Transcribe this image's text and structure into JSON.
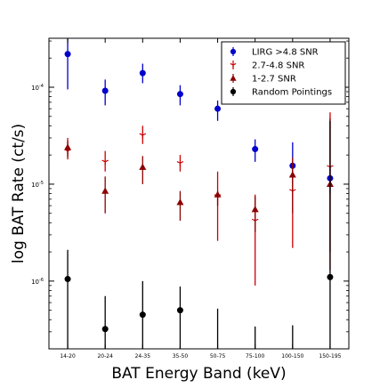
{
  "chart_data": {
    "type": "scatter",
    "subtype": "errorbar",
    "title": "",
    "xlabel": "BAT Energy Band (keV)",
    "ylabel": "log BAT Rate (ct/s)",
    "yscale": "log",
    "ylim": [
      2e-07,
      0.00032
    ],
    "grid": false,
    "legend_position": "top-right",
    "categories": [
      "14-20",
      "20-24",
      "24-35",
      "35-50",
      "50-75",
      "75-100",
      "100-150",
      "150-195"
    ],
    "y_ticks": [
      {
        "value": 1e-06,
        "base": "10",
        "exp": "-6"
      },
      {
        "value": 1e-05,
        "base": "10",
        "exp": "-5"
      },
      {
        "value": 0.0001,
        "base": "10",
        "exp": "-4"
      }
    ],
    "series": [
      {
        "name": "LIRG >4.8 SNR",
        "color": "#0000cc",
        "marker": "circle",
        "x_offset": 0.0,
        "values": [
          0.00022,
          9.2e-05,
          0.00014,
          8.5e-05,
          6e-05,
          2.3e-05,
          1.55e-05,
          1.15e-05
        ],
        "err_low": [
          9.5e-05,
          6.5e-05,
          0.00011,
          6.5e-05,
          4.5e-05,
          1.7e-05,
          1e-05,
          8e-06
        ],
        "err_high": [
          0.00032,
          0.00012,
          0.000175,
          0.000105,
          7.3e-05,
          2.9e-05,
          2.7e-05,
          1.45e-05
        ]
      },
      {
        "name": "2.7-4.8 SNR",
        "color": "#cc0000",
        "marker": "tri_down",
        "x_offset": 0.0,
        "values": [
          2.2e-05,
          1.7e-05,
          3.2e-05,
          1.65e-05,
          7.5e-06,
          4.2e-06,
          8.5e-06,
          1.5e-05
        ],
        "err_low": [
          1.8e-05,
          1.35e-05,
          2.6e-05,
          1.35e-05,
          2.6e-06,
          9e-07,
          2.2e-06,
          1.3e-06
        ],
        "err_high": [
          3e-05,
          2.2e-05,
          4e-05,
          2e-05,
          1.35e-05,
          7.8e-06,
          1.75e-05,
          5.5e-05
        ]
      },
      {
        "name": "1-2.7 SNR",
        "color": "#8b0000",
        "marker": "triangle",
        "x_offset": 0.0,
        "values": [
          2.4e-05,
          8.5e-06,
          1.5e-05,
          6.5e-06,
          7.8e-06,
          5.5e-06,
          1.25e-05,
          1e-05
        ],
        "err_low": [
          1.9e-05,
          5e-06,
          1e-05,
          4.2e-06,
          6e-06,
          3.2e-06,
          5e-06,
          2e-06
        ],
        "err_high": [
          2.8e-05,
          1.2e-05,
          1.95e-05,
          8.5e-06,
          8.5e-06,
          7.5e-06,
          1.9e-05,
          4.8e-05
        ]
      },
      {
        "name": "Random Pointings",
        "color": "#000000",
        "marker": "circle",
        "x_offset": 0.0,
        "values": [
          1.05e-06,
          3.2e-07,
          4.5e-07,
          5e-07,
          1.9e-07,
          1.9e-07,
          1.9e-07,
          1.1e-06
        ],
        "err_low": [
          2e-07,
          2e-07,
          2e-07,
          2e-07,
          2e-07,
          2e-07,
          2e-07,
          2e-07
        ],
        "err_high": [
          2.1e-06,
          7e-07,
          1e-06,
          8.8e-07,
          5.2e-07,
          3.4e-07,
          3.5e-07,
          4.5e-05
        ]
      }
    ]
  }
}
